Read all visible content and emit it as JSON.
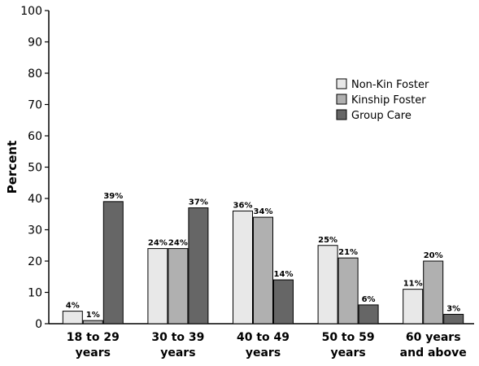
{
  "chart_data": {
    "type": "bar",
    "title": "",
    "xlabel": "",
    "ylabel": "Percent",
    "ylim": [
      0,
      100
    ],
    "yticks": [
      0,
      10,
      20,
      30,
      40,
      50,
      60,
      70,
      80,
      90,
      100
    ],
    "grid": false,
    "legend_position": "right",
    "categories": [
      [
        "18 to 29",
        "years"
      ],
      [
        "30 to 39",
        "years"
      ],
      [
        "40 to 49",
        "years"
      ],
      [
        "50 to 59",
        "years"
      ],
      [
        "60 years",
        "and above"
      ]
    ],
    "series": [
      {
        "name": "Non-Kin Foster",
        "color": "#e8e8e8",
        "values": [
          4,
          24,
          36,
          25,
          11
        ],
        "labels": [
          "4%",
          "24%",
          "36%",
          "25%",
          "11%"
        ]
      },
      {
        "name": "Kinship Foster",
        "color": "#b0b0b0",
        "values": [
          1,
          24,
          34,
          21,
          20
        ],
        "labels": [
          "1%",
          "24%",
          "34%",
          "21%",
          "20%"
        ]
      },
      {
        "name": "Group Care",
        "color": "#666666",
        "values": [
          39,
          37,
          14,
          6,
          3
        ],
        "labels": [
          "39%",
          "37%",
          "14%",
          "6%",
          "3%"
        ]
      }
    ]
  }
}
